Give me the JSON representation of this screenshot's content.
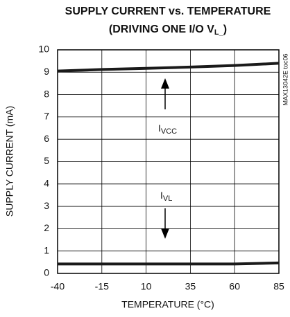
{
  "chart_data": {
    "type": "line",
    "title": "SUPPLY CURRENT vs. TEMPERATURE",
    "subtitle": [
      "(DRIVING ONE I/O V",
      "L_",
      ")"
    ],
    "side_note": "MAX13042E toc06",
    "x_label": "TEMPERATURE (°C)",
    "y_label": "SUPPLY CURRENT (mA)",
    "x": [
      -40,
      -15,
      10,
      35,
      60,
      85
    ],
    "series": [
      {
        "label": [
          "I",
          "VCC"
        ],
        "color": "#1a1a1a",
        "values": [
          9.05,
          9.12,
          9.17,
          9.23,
          9.3,
          9.4
        ]
      },
      {
        "label": [
          "I",
          "VL"
        ],
        "color": "#1a1a1a",
        "values": [
          0.42,
          0.42,
          0.42,
          0.42,
          0.42,
          0.47
        ]
      }
    ],
    "xlim": [
      -40,
      85
    ],
    "xticks": [
      -40,
      -15,
      10,
      35,
      60,
      85
    ],
    "ylim": [
      0,
      10
    ],
    "yticks": [
      0,
      1,
      2,
      3,
      4,
      5,
      6,
      7,
      8,
      9,
      10
    ],
    "grid": true
  }
}
